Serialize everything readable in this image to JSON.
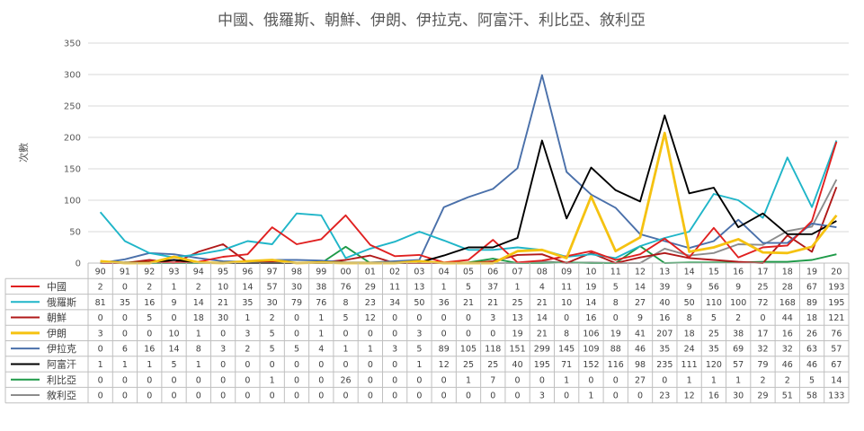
{
  "chart_data": {
    "type": "line",
    "title": "中國、俄羅斯、朝鮮、伊朗、伊拉克、阿富汗、利比亞、敘利亞",
    "ylabel": "次數",
    "xlabel": "",
    "ylim": [
      0,
      350
    ],
    "yticks": [
      "0",
      "50",
      "100",
      "150",
      "200",
      "250",
      "300",
      "350"
    ],
    "grid": true,
    "legend": "data-table",
    "categories": [
      "90",
      "91",
      "92",
      "93",
      "94",
      "95",
      "96",
      "97",
      "98",
      "99",
      "00",
      "01",
      "02",
      "03",
      "04",
      "05",
      "06",
      "07",
      "08",
      "09",
      "10",
      "11",
      "12",
      "13",
      "14",
      "15",
      "16",
      "17",
      "18",
      "19",
      "20"
    ],
    "series": [
      {
        "name": "中國",
        "color": "#e02020",
        "values": [
          2,
          0,
          2,
          1,
          2,
          10,
          14,
          57,
          30,
          38,
          76,
          29,
          11,
          13,
          1,
          5,
          37,
          1,
          4,
          11,
          19,
          5,
          14,
          39,
          9,
          56,
          9,
          25,
          28,
          67,
          193
        ]
      },
      {
        "name": "俄羅斯",
        "color": "#1fb5c8",
        "values": [
          81,
          35,
          16,
          9,
          14,
          21,
          35,
          30,
          79,
          76,
          8,
          23,
          34,
          50,
          36,
          21,
          21,
          25,
          21,
          10,
          14,
          8,
          27,
          40,
          50,
          110,
          100,
          72,
          168,
          89,
          195
        ]
      },
      {
        "name": "朝鮮",
        "color": "#b01818",
        "values": [
          0,
          0,
          5,
          0,
          18,
          30,
          1,
          2,
          0,
          1,
          5,
          12,
          0,
          0,
          0,
          0,
          3,
          13,
          14,
          0,
          16,
          0,
          9,
          16,
          8,
          5,
          2,
          0,
          44,
          18,
          121
        ]
      },
      {
        "name": "伊朗",
        "color": "#f5c211",
        "values": [
          3,
          0,
          0,
          10,
          1,
          0,
          3,
          5,
          0,
          1,
          0,
          0,
          0,
          3,
          0,
          0,
          0,
          19,
          21,
          8,
          106,
          19,
          41,
          207,
          18,
          25,
          38,
          17,
          16,
          26,
          76
        ]
      },
      {
        "name": "伊拉克",
        "color": "#4a70aa",
        "values": [
          0,
          6,
          16,
          14,
          8,
          3,
          2,
          5,
          5,
          4,
          1,
          1,
          3,
          5,
          89,
          105,
          118,
          151,
          299,
          145,
          109,
          88,
          46,
          35,
          24,
          35,
          69,
          32,
          32,
          63,
          57
        ]
      },
      {
        "name": "阿富汗",
        "color": "#000000",
        "values": [
          1,
          1,
          1,
          5,
          1,
          0,
          0,
          0,
          0,
          0,
          0,
          0,
          0,
          1,
          12,
          25,
          25,
          40,
          195,
          71,
          152,
          116,
          98,
          235,
          111,
          120,
          57,
          79,
          46,
          46,
          67
        ]
      },
      {
        "name": "利比亞",
        "color": "#1e9a48",
        "values": [
          0,
          0,
          0,
          0,
          0,
          0,
          0,
          1,
          0,
          0,
          26,
          0,
          0,
          0,
          0,
          1,
          7,
          0,
          0,
          1,
          0,
          0,
          27,
          0,
          1,
          1,
          1,
          2,
          2,
          5,
          14
        ]
      },
      {
        "name": "敘利亞",
        "color": "#8c8c8c",
        "values": [
          0,
          0,
          0,
          0,
          0,
          0,
          0,
          0,
          0,
          0,
          0,
          0,
          0,
          0,
          0,
          0,
          0,
          0,
          3,
          0,
          1,
          0,
          0,
          23,
          12,
          16,
          30,
          29,
          51,
          58,
          133
        ]
      }
    ]
  }
}
